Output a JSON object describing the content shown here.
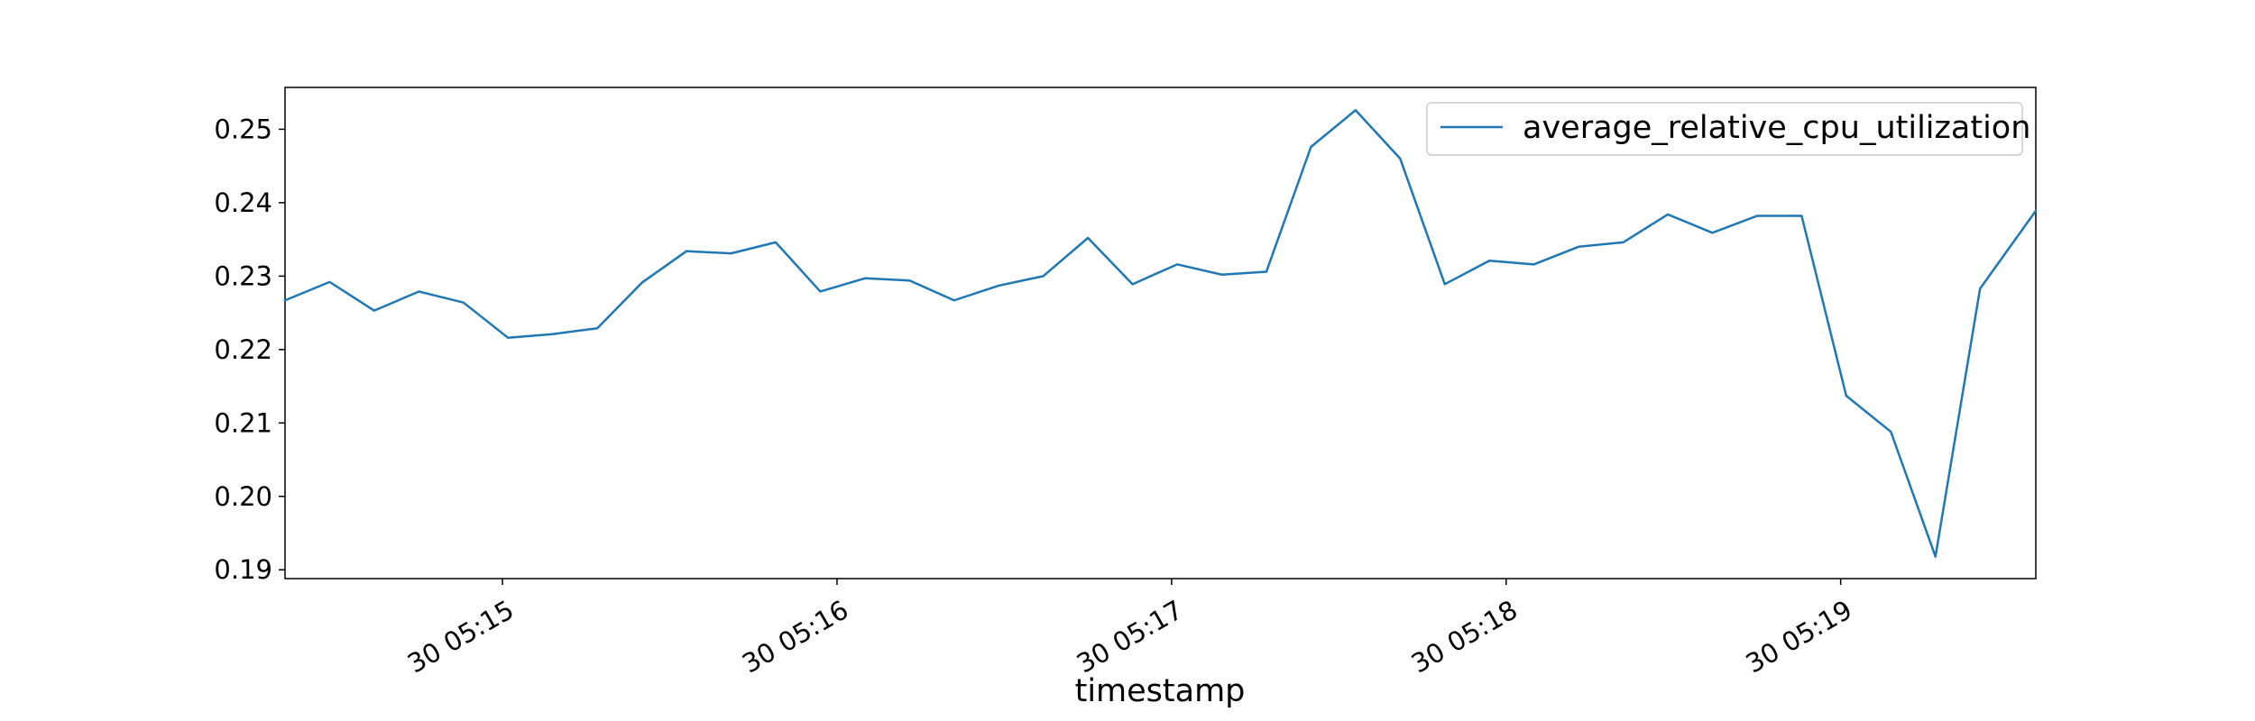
{
  "chart_data": {
    "type": "line",
    "xlabel": "timestamp",
    "ylabel": "",
    "legend": {
      "placement": "top-right",
      "entries": [
        "average_relative_cpu_utilization"
      ]
    },
    "grid": false,
    "colors": {
      "series": "#1f77b4",
      "axis": "#000000",
      "legend_border": "#cccccc"
    },
    "xlim": [
      "05:14:21",
      "05:19:35"
    ],
    "ylim": [
      0.1888,
      0.2557
    ],
    "x_ticks": [
      {
        "value": "05:15:00",
        "label": "30 05:15"
      },
      {
        "value": "05:16:00",
        "label": "30 05:16"
      },
      {
        "value": "05:17:00",
        "label": "30 05:17"
      },
      {
        "value": "05:18:00",
        "label": "30 05:18"
      },
      {
        "value": "05:19:00",
        "label": "30 05:19"
      }
    ],
    "y_ticks": [
      {
        "value": 0.19,
        "label": "0.19"
      },
      {
        "value": 0.2,
        "label": "0.20"
      },
      {
        "value": 0.21,
        "label": "0.21"
      },
      {
        "value": 0.22,
        "label": "0.22"
      },
      {
        "value": 0.23,
        "label": "0.23"
      },
      {
        "value": 0.24,
        "label": "0.24"
      },
      {
        "value": 0.25,
        "label": "0.25"
      }
    ],
    "series": [
      {
        "name": "average_relative_cpu_utilization",
        "x": [
          "05:14:21",
          "05:14:29",
          "05:14:37",
          "05:14:45",
          "05:14:53",
          "05:15:01",
          "05:15:09",
          "05:15:17",
          "05:15:25",
          "05:15:33",
          "05:15:41",
          "05:15:49",
          "05:15:57",
          "05:16:05",
          "05:16:13",
          "05:16:21",
          "05:16:29",
          "05:16:37",
          "05:16:45",
          "05:16:53",
          "05:17:01",
          "05:17:09",
          "05:17:17",
          "05:17:25",
          "05:17:33",
          "05:17:41",
          "05:17:49",
          "05:17:57",
          "05:18:05",
          "05:18:13",
          "05:18:21",
          "05:18:29",
          "05:18:37",
          "05:18:45",
          "05:18:53",
          "05:19:01",
          "05:19:09",
          "05:19:17",
          "05:19:25",
          "05:19:35"
        ],
        "y": [
          0.2267,
          0.2292,
          0.2253,
          0.2279,
          0.2264,
          0.2216,
          0.2221,
          0.2229,
          0.2291,
          0.2334,
          0.2331,
          0.2346,
          0.2279,
          0.2297,
          0.2294,
          0.2267,
          0.2287,
          0.23,
          0.2352,
          0.2289,
          0.2316,
          0.2302,
          0.2306,
          0.2476,
          0.2526,
          0.246,
          0.2289,
          0.2321,
          0.2316,
          0.234,
          0.2346,
          0.2384,
          0.2359,
          0.2382,
          0.2382,
          0.2137,
          0.2088,
          0.1918,
          0.2283,
          0.2389
        ]
      }
    ]
  }
}
